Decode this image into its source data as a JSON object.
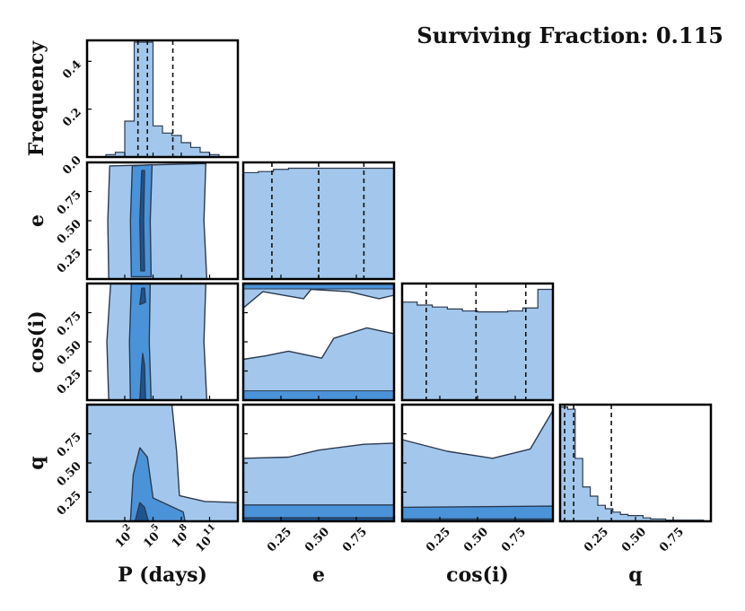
{
  "chart_data": {
    "type": "corner",
    "title": "Surviving Fraction: 0.115",
    "parameters": [
      "P",
      "e",
      "cos(i)",
      "q"
    ],
    "axis_labels": {
      "P": "P (days)",
      "e": "e",
      "cos(i)": "cos(i)",
      "q": "q",
      "frequency": "Frequency"
    },
    "colors": {
      "light": "#a3c7ec",
      "medium": "#4b93d9",
      "dark": "#1d5491",
      "edge": "#2b3a4f"
    },
    "grid": false,
    "legend": "none",
    "diagonal_histograms": [
      {
        "param": "P",
        "scale": "log",
        "x_range": [
          0.01,
          100000000000000.0
        ],
        "ylim": [
          0,
          0.48
        ],
        "bin_edges_log10": [
          -1,
          0,
          1,
          2,
          3,
          4,
          5,
          6,
          7,
          8,
          9,
          10,
          11,
          12,
          13
        ],
        "values": [
          0.0,
          0.01,
          0.02,
          0.15,
          0.48,
          0.48,
          0.13,
          0.1,
          0.09,
          0.06,
          0.04,
          0.02,
          0.01,
          0.0
        ],
        "quantiles_log10": [
          3.4,
          4.4,
          7.1
        ],
        "yticks": [
          0.0,
          0.2,
          0.4
        ],
        "yticklabels": [
          "0.0",
          "0.2",
          "0.4"
        ],
        "ylabel": "Frequency"
      },
      {
        "param": "e",
        "x_range": [
          0.0,
          1.0
        ],
        "values": [
          0.96,
          0.97,
          0.99,
          1.0,
          1.0,
          1.0,
          1.0,
          1.0,
          1.0,
          1.0
        ],
        "relative": true,
        "quantiles": [
          0.19,
          0.5,
          0.8
        ]
      },
      {
        "param": "cos(i)",
        "x_range": [
          0.0,
          1.0
        ],
        "values": [
          1.0,
          0.97,
          0.95,
          0.93,
          0.91,
          0.9,
          0.9,
          0.91,
          0.94,
          1.13
        ],
        "relative": true,
        "quantiles": [
          0.16,
          0.49,
          0.82
        ]
      },
      {
        "param": "q",
        "x_range": [
          0.0,
          1.0
        ],
        "values": [
          1.0,
          0.98,
          0.55,
          0.3,
          0.22,
          0.14,
          0.11,
          0.08,
          0.06,
          0.05,
          0.05,
          0.03,
          0.02,
          0.02,
          0.01,
          0.01,
          0.01,
          0.01,
          0.01,
          0.0
        ],
        "relative": true,
        "quantiles": [
          0.03,
          0.09,
          0.34
        ]
      }
    ],
    "contour_levels": [
      "light",
      "medium",
      "dark"
    ],
    "x_ticks": {
      "P": {
        "values_log10": [
          2,
          5,
          8,
          11
        ],
        "labels": [
          "10^2",
          "10^5",
          "10^8",
          "10^11"
        ]
      },
      "e": {
        "values": [
          0.25,
          0.5,
          0.75
        ],
        "labels": [
          "0.25",
          "0.50",
          "0.75"
        ]
      },
      "cos(i)": {
        "values": [
          0.25,
          0.5,
          0.75
        ],
        "labels": [
          "0.25",
          "0.50",
          "0.75"
        ]
      },
      "q": {
        "values": [
          0.25,
          0.5,
          0.75
        ],
        "labels": [
          "0.25",
          "0.50",
          "0.75"
        ]
      }
    },
    "y_ticks": {
      "e": {
        "values": [
          0.25,
          0.5,
          0.75
        ],
        "labels": [
          "0.25",
          "0.50",
          "0.75"
        ]
      },
      "cos(i)": {
        "values": [
          0.25,
          0.5,
          0.75
        ],
        "labels": [
          "0.25",
          "0.50",
          "0.75"
        ]
      },
      "q": {
        "values": [
          0.25,
          0.5,
          0.75
        ],
        "labels": [
          "0.25",
          "0.50",
          "0.75"
        ]
      }
    }
  }
}
